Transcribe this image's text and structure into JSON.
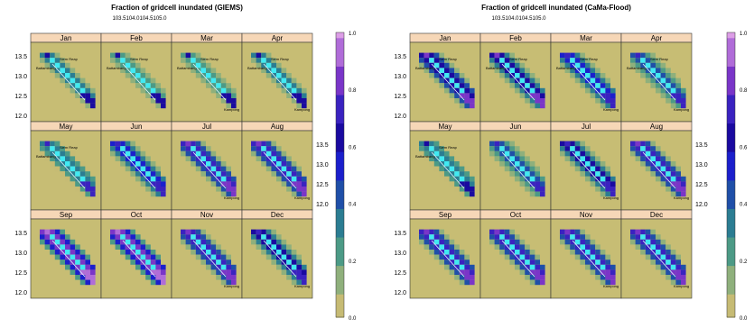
{
  "figure": {
    "panel_left": {
      "title": "Fraction of gridcell inundated (GIEMS)",
      "top_ticks": [
        "103.5",
        "104.0",
        "104.5",
        "105.0"
      ],
      "left_ticks": [
        "13.5",
        "13.0",
        "12.5",
        "12.0"
      ]
    },
    "panel_right": {
      "title": "Fraction of gridcell inundated (CaMa-Flood)",
      "top_ticks": [
        "103.5",
        "104.0",
        "104.5",
        "105.0"
      ],
      "left_ticks": [
        "13.5",
        "13.0",
        "12.5",
        "12.0"
      ]
    },
    "months": [
      "Jan",
      "Feb",
      "Mar",
      "Apr",
      "May",
      "Jun",
      "Jul",
      "Aug",
      "Sep",
      "Oct",
      "Nov",
      "Dec"
    ],
    "city_labels": [
      "Siem Reap",
      "Battambang",
      "Kampong"
    ],
    "colorbar_ticks": [
      "1.0",
      "0.8",
      "0.6",
      "0.4",
      "0.2",
      "0.0"
    ],
    "colors": {
      "background": "#c7bd74",
      "strip": "#f6d7b7",
      "colormap": [
        "#c6bb74",
        "#8fb07c",
        "#4c9a86",
        "#2b7d92",
        "#1f4fa8",
        "#1b1fcc",
        "#1a0aa0",
        "#3a22c0",
        "#7a35c8",
        "#b06cd8",
        "#dc9ee6"
      ],
      "lake": "#41e9f2"
    }
  },
  "chart_data": [
    {
      "type": "heatmap",
      "title": "Fraction of gridcell inundated (GIEMS)",
      "panels": [
        "Jan",
        "Feb",
        "Mar",
        "Apr",
        "May",
        "Jun",
        "Jul",
        "Aug",
        "Sep",
        "Oct",
        "Nov",
        "Dec"
      ],
      "x_ticks": [
        103.5,
        104.0,
        104.5,
        105.0
      ],
      "y_ticks": [
        13.5,
        13.0,
        12.5,
        12.0
      ],
      "zlim": [
        0,
        1
      ],
      "colorbar_ticks": [
        1.0,
        0.8,
        0.6,
        0.4,
        0.2,
        0.0
      ],
      "wet_intensity": [
        0.35,
        0.3,
        0.3,
        0.35,
        0.45,
        0.6,
        0.85,
        0.9,
        1.0,
        1.0,
        0.85,
        0.7
      ]
    },
    {
      "type": "heatmap",
      "title": "Fraction of gridcell inundated (CaMa-Flood)",
      "panels": [
        "Jan",
        "Feb",
        "Mar",
        "Apr",
        "May",
        "Jun",
        "Jul",
        "Aug",
        "Sep",
        "Oct",
        "Nov",
        "Dec"
      ],
      "x_ticks": [
        103.5,
        104.0,
        104.5,
        105.0
      ],
      "y_ticks": [
        13.5,
        13.0,
        12.5,
        12.0
      ],
      "zlim": [
        0,
        1
      ],
      "colorbar_ticks": [
        1.0,
        0.8,
        0.6,
        0.4,
        0.2,
        0.0
      ],
      "wet_intensity": [
        0.8,
        0.75,
        0.65,
        0.55,
        0.4,
        0.5,
        0.7,
        0.85,
        0.9,
        0.9,
        0.9,
        0.85
      ]
    }
  ]
}
